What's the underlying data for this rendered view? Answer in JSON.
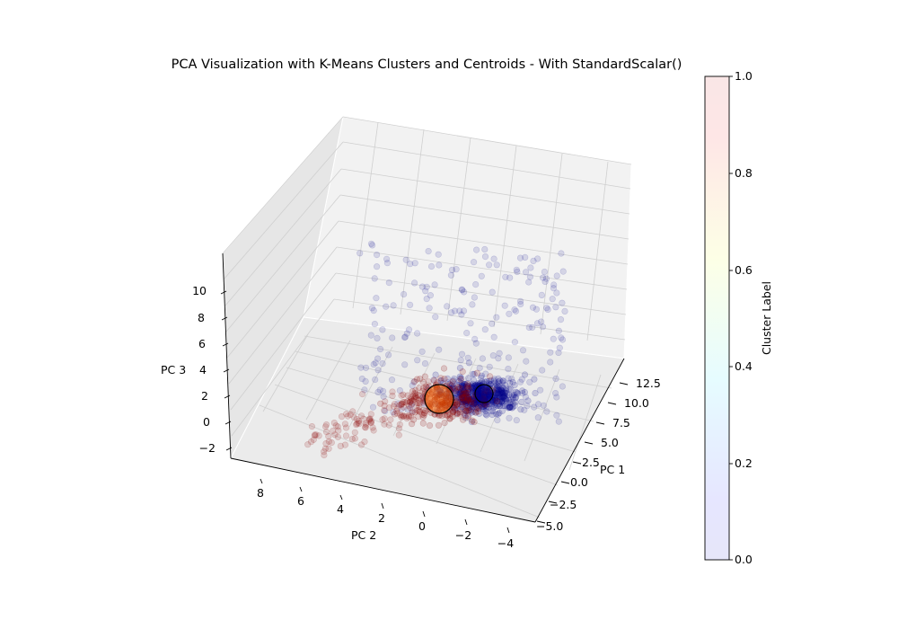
{
  "chart_data": {
    "type": "scatter",
    "title": "PCA Visualization with K-Means Clusters and Centroids - With StandardScalar()",
    "axes": {
      "x": {
        "label": "PC 1",
        "ticks": [
          "12.5",
          "10.0",
          "7.5",
          "5.0",
          "2.5",
          "0.0",
          "−2.5",
          "−5.0"
        ],
        "range": [
          -6,
          13.5
        ]
      },
      "y": {
        "label": "PC 2",
        "ticks": [
          "8",
          "6",
          "4",
          "2",
          "0",
          "−2",
          "−4"
        ],
        "range": [
          -4.5,
          9.5
        ]
      },
      "z": {
        "label": "PC 3",
        "ticks": [
          "10",
          "8",
          "6",
          "4",
          "2",
          "0",
          "−2"
        ],
        "range": [
          -3,
          11.5
        ]
      }
    },
    "grid": true,
    "colorbar": {
      "label": "Cluster Label",
      "ticks": [
        "0.0",
        "0.2",
        "0.4",
        "0.6",
        "0.8",
        "1.0"
      ],
      "range": [
        0,
        1
      ],
      "colormap": "jet",
      "alpha": 0.1
    },
    "clusters": [
      {
        "label": 0,
        "color": "#00008b",
        "approx_points": 750
      },
      {
        "label": 1,
        "color": "#8b0000",
        "approx_points": 350
      }
    ],
    "centroids": [
      {
        "color": "#ff6a00",
        "edge": "#000000"
      },
      {
        "color": "#00008b",
        "edge": "#000000"
      }
    ]
  }
}
